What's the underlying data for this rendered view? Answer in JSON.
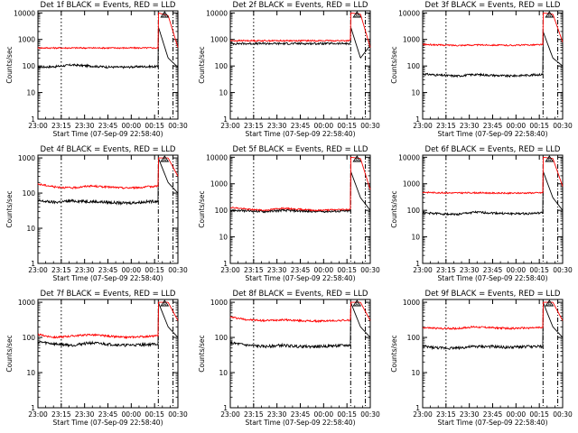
{
  "chart_data": [
    {
      "type": "line",
      "title": "Det 1f BLACK = Events, RED = LLD",
      "xlabel": "Start Time (07-Sep-09 22:58:40)",
      "ylabel": "Counts/sec",
      "log_y": true,
      "ylim": [
        1,
        12000
      ],
      "yticks": [
        "1",
        "10",
        "100",
        "1000",
        "10000"
      ],
      "xticks": [
        "23:00",
        "23:15",
        "23:30",
        "23:45",
        "00:00",
        "00:15",
        "00:30"
      ],
      "marker": "A",
      "series": [
        {
          "color": "#000000",
          "values": [
            90,
            95,
            110,
            100,
            92,
            90,
            95,
            95,
            3000,
            200,
            90
          ]
        },
        {
          "color": "#ff0000",
          "values": [
            480,
            480,
            480,
            480,
            480,
            480,
            480,
            480,
            10000,
            8000,
            500
          ]
        }
      ]
    },
    {
      "type": "line",
      "title": "Det 2f BLACK = Events, RED = LLD",
      "xlabel": "Start Time (07-Sep-09 22:58:40)",
      "ylabel": "Counts/sec",
      "log_y": true,
      "ylim": [
        1,
        12000
      ],
      "yticks": [
        "1",
        "10",
        "100",
        "1000",
        "10000"
      ],
      "xticks": [
        "23:00",
        "23:15",
        "23:30",
        "23:45",
        "00:00",
        "00:15",
        "00:30"
      ],
      "marker": "A",
      "series": [
        {
          "color": "#000000",
          "values": [
            700,
            700,
            700,
            700,
            700,
            700,
            700,
            700,
            3000,
            200,
            600
          ]
        },
        {
          "color": "#ff0000",
          "values": [
            900,
            900,
            900,
            900,
            900,
            900,
            900,
            900,
            10000,
            9000,
            500
          ]
        }
      ]
    },
    {
      "type": "line",
      "title": "Det 3f BLACK = Events, RED = LLD",
      "xlabel": "Start Time (07-Sep-09 22:58:40)",
      "ylabel": "Counts/sec",
      "log_y": true,
      "ylim": [
        1,
        12000
      ],
      "yticks": [
        "1",
        "10",
        "100",
        "1000",
        "10000"
      ],
      "xticks": [
        "23:00",
        "23:15",
        "23:30",
        "23:45",
        "00:00",
        "00:15",
        "00:30"
      ],
      "marker": "A",
      "series": [
        {
          "color": "#000000",
          "values": [
            50,
            45,
            42,
            48,
            45,
            42,
            45,
            48,
            2000,
            200,
            100
          ]
        },
        {
          "color": "#ff0000",
          "values": [
            650,
            620,
            600,
            620,
            620,
            600,
            620,
            640,
            10000,
            9000,
            800
          ]
        }
      ]
    },
    {
      "type": "line",
      "title": "Det 4f BLACK = Events, RED = LLD",
      "xlabel": "Start Time (07-Sep-09 22:58:40)",
      "ylabel": "Counts/sec",
      "log_y": true,
      "ylim": [
        1,
        1200
      ],
      "yticks": [
        "1",
        "10",
        "100",
        "1000"
      ],
      "xticks": [
        "23:00",
        "23:15",
        "23:30",
        "23:45",
        "00:00",
        "00:15",
        "00:30"
      ],
      "marker": "A",
      "series": [
        {
          "color": "#000000",
          "values": [
            60,
            55,
            60,
            58,
            55,
            52,
            55,
            60,
            1000,
            200,
            100
          ]
        },
        {
          "color": "#ff0000",
          "values": [
            180,
            150,
            140,
            160,
            150,
            140,
            145,
            160,
            1000,
            1000,
            300
          ]
        }
      ]
    },
    {
      "type": "line",
      "title": "Det 5f BLACK = Events, RED = LLD",
      "xlabel": "Start Time (07-Sep-09 22:58:40)",
      "ylabel": "Counts/sec",
      "log_y": true,
      "ylim": [
        1,
        12000
      ],
      "yticks": [
        "1",
        "10",
        "100",
        "1000",
        "10000"
      ],
      "xticks": [
        "23:00",
        "23:15",
        "23:30",
        "23:45",
        "00:00",
        "00:15",
        "00:30"
      ],
      "marker": "A",
      "series": [
        {
          "color": "#000000",
          "values": [
            100,
            95,
            90,
            100,
            95,
            90,
            92,
            95,
            3000,
            300,
            100
          ]
        },
        {
          "color": "#ff0000",
          "values": [
            130,
            110,
            100,
            120,
            110,
            100,
            105,
            110,
            10000,
            9000,
            600
          ]
        }
      ]
    },
    {
      "type": "line",
      "title": "Det 6f BLACK = Events, RED = LLD",
      "xlabel": "Start Time (07-Sep-09 22:58:40)",
      "ylabel": "Counts/sec",
      "log_y": true,
      "ylim": [
        1,
        12000
      ],
      "yticks": [
        "1",
        "10",
        "100",
        "1000",
        "10000"
      ],
      "xticks": [
        "23:00",
        "23:15",
        "23:30",
        "23:45",
        "00:00",
        "00:15",
        "00:30"
      ],
      "marker": "A",
      "series": [
        {
          "color": "#000000",
          "values": [
            80,
            75,
            70,
            85,
            80,
            75,
            75,
            80,
            3000,
            300,
            100
          ]
        },
        {
          "color": "#ff0000",
          "values": [
            480,
            460,
            450,
            460,
            450,
            440,
            450,
            460,
            10000,
            9000,
            800
          ]
        }
      ]
    },
    {
      "type": "line",
      "title": "Det 7f BLACK = Events, RED = LLD",
      "xlabel": "Start Time (07-Sep-09 22:58:40)",
      "ylabel": "Counts/sec",
      "log_y": true,
      "ylim": [
        1,
        1200
      ],
      "yticks": [
        "1",
        "10",
        "100",
        "1000"
      ],
      "xticks": [
        "23:00",
        "23:15",
        "23:30",
        "23:45",
        "00:00",
        "00:15",
        "00:30"
      ],
      "marker": "A",
      "series": [
        {
          "color": "#000000",
          "values": [
            75,
            65,
            60,
            70,
            65,
            60,
            62,
            65,
            1000,
            200,
            100
          ]
        },
        {
          "color": "#ff0000",
          "values": [
            120,
            100,
            110,
            120,
            110,
            100,
            105,
            110,
            1000,
            1000,
            300
          ]
        }
      ]
    },
    {
      "type": "line",
      "title": "Det 8f BLACK = Events, RED = LLD",
      "xlabel": "Start Time (07-Sep-09 22:58:40)",
      "ylabel": "Counts/sec",
      "log_y": true,
      "ylim": [
        1,
        1200
      ],
      "yticks": [
        "1",
        "10",
        "100",
        "1000"
      ],
      "xticks": [
        "23:00",
        "23:15",
        "23:30",
        "23:45",
        "00:00",
        "00:15",
        "00:30"
      ],
      "marker": "A",
      "series": [
        {
          "color": "#000000",
          "values": [
            70,
            60,
            55,
            60,
            55,
            55,
            58,
            60,
            1000,
            200,
            100
          ]
        },
        {
          "color": "#ff0000",
          "values": [
            380,
            320,
            300,
            320,
            300,
            290,
            300,
            310,
            1000,
            1000,
            300
          ]
        }
      ]
    },
    {
      "type": "line",
      "title": "Det 9f BLACK = Events, RED = LLD",
      "xlabel": "Start Time (07-Sep-09 22:58:40)",
      "ylabel": "Counts/sec",
      "log_y": true,
      "ylim": [
        1,
        1200
      ],
      "yticks": [
        "1",
        "10",
        "100",
        "1000"
      ],
      "xticks": [
        "23:00",
        "23:15",
        "23:30",
        "23:45",
        "00:00",
        "00:15",
        "00:30"
      ],
      "marker": "A",
      "series": [
        {
          "color": "#000000",
          "values": [
            55,
            50,
            50,
            55,
            55,
            52,
            55,
            55,
            1000,
            200,
            100
          ]
        },
        {
          "color": "#ff0000",
          "values": [
            190,
            180,
            180,
            200,
            190,
            180,
            185,
            190,
            1000,
            1000,
            300
          ]
        }
      ]
    }
  ]
}
